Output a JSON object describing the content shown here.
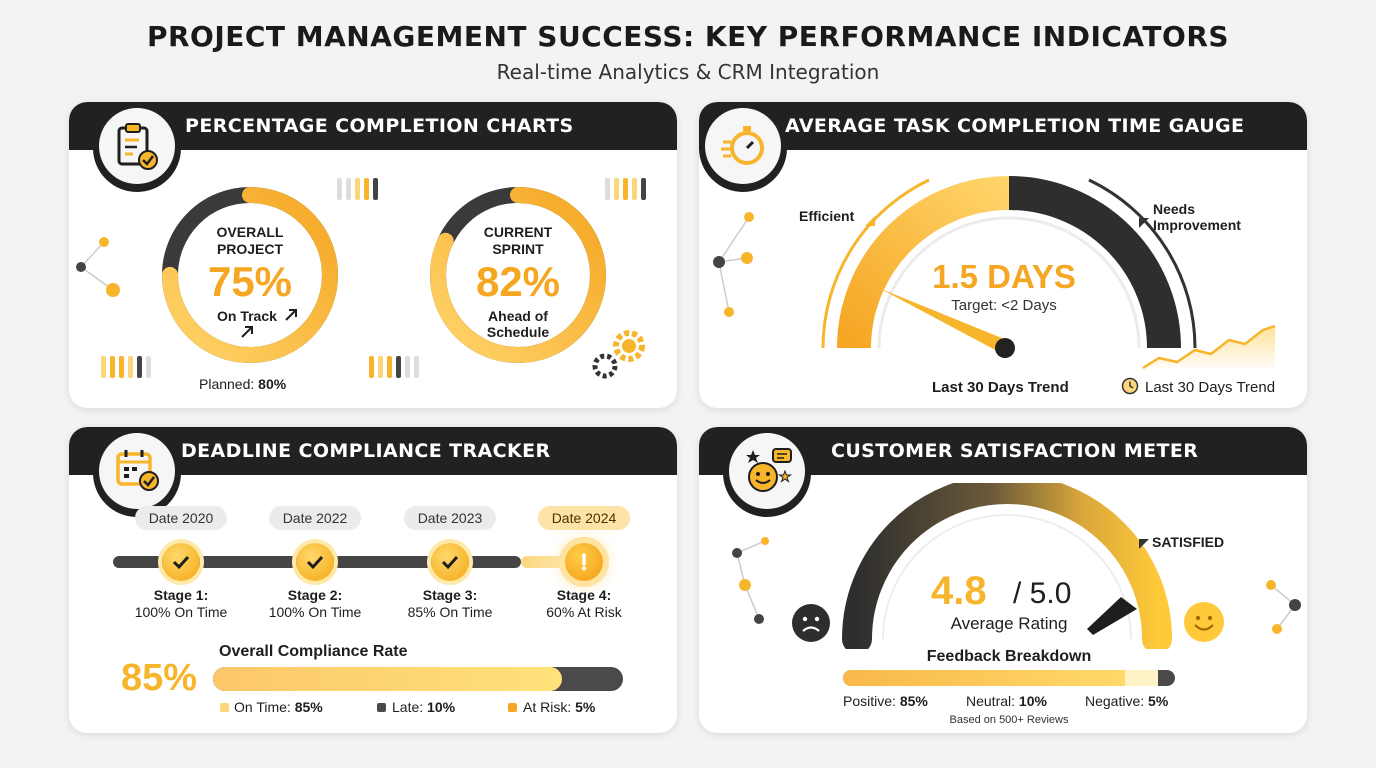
{
  "page": {
    "title": "PROJECT MANAGEMENT SUCCESS: KEY PERFORMANCE INDICATORS",
    "subtitle": "Real-time Analytics & CRM Integration"
  },
  "colors": {
    "accent": "#f7b52c",
    "accent_light": "#fbd77a",
    "dark": "#212121",
    "track": "#4a4a4a"
  },
  "completion": {
    "title": "PERCENTAGE COMPLETION CHARTS",
    "icon": "clipboard-check-icon",
    "overall": {
      "label_line1": "OVERALL",
      "label_line2": "PROJECT",
      "value": "75%",
      "fraction": 0.75,
      "status": "On Track",
      "planned_label": "Planned:",
      "planned_value": "80%"
    },
    "sprint": {
      "label_line1": "CURRENT",
      "label_line2": "SPRINT",
      "value": "82%",
      "fraction": 0.82,
      "status_line1": "Ahead of",
      "status_line2": "Schedule"
    }
  },
  "gauge": {
    "title": "AVERAGE TASK COMPLETION TIME GAUGE",
    "icon": "stopwatch-icon",
    "efficient_label": "Efficient",
    "needs_line1": "Needs",
    "needs_line2": "Improvement",
    "value": "1.5 DAYS",
    "target": "Target: <2 Days",
    "trend_label": "Last 30 Days Trend",
    "trend_legend": "Last 30 Days Trend"
  },
  "deadline": {
    "title": "DEADLINE COMPLIANCE TRACKER",
    "icon": "calendar-check-icon",
    "stages": [
      {
        "date": "Date 2020",
        "name": "Stage 1:",
        "status": "100% On Time"
      },
      {
        "date": "Date 2022",
        "name": "Stage 2:",
        "status": "100% On Time"
      },
      {
        "date": "Date 2023",
        "name": "Stage 3:",
        "status": "85% On Time"
      },
      {
        "date": "Date 2024",
        "name": "Stage 4:",
        "status": "60% At Risk"
      }
    ],
    "rate_label": "Overall Compliance Rate",
    "rate_value": "85%",
    "rate_fraction": 0.85,
    "legend": [
      {
        "label": "On Time:",
        "value": "85%"
      },
      {
        "label": "Late:",
        "value": "10%"
      },
      {
        "label": "At Risk:",
        "value": "5%"
      }
    ]
  },
  "satisfaction": {
    "title": "CUSTOMER SATISFACTION METER",
    "icon": "smiley-chat-icon",
    "satisfied_label": "SATISFIED",
    "rating": "4.8",
    "max": "/ 5.0",
    "rating_label": "Average Rating",
    "feedback_title": "Feedback Breakdown",
    "breakdown": [
      {
        "label": "Positive:",
        "value": "85%"
      },
      {
        "label": "Neutral:",
        "value": "10%"
      },
      {
        "label": "Negative:",
        "value": "5%"
      }
    ],
    "footnote": "Based on 500+ Reviews"
  }
}
